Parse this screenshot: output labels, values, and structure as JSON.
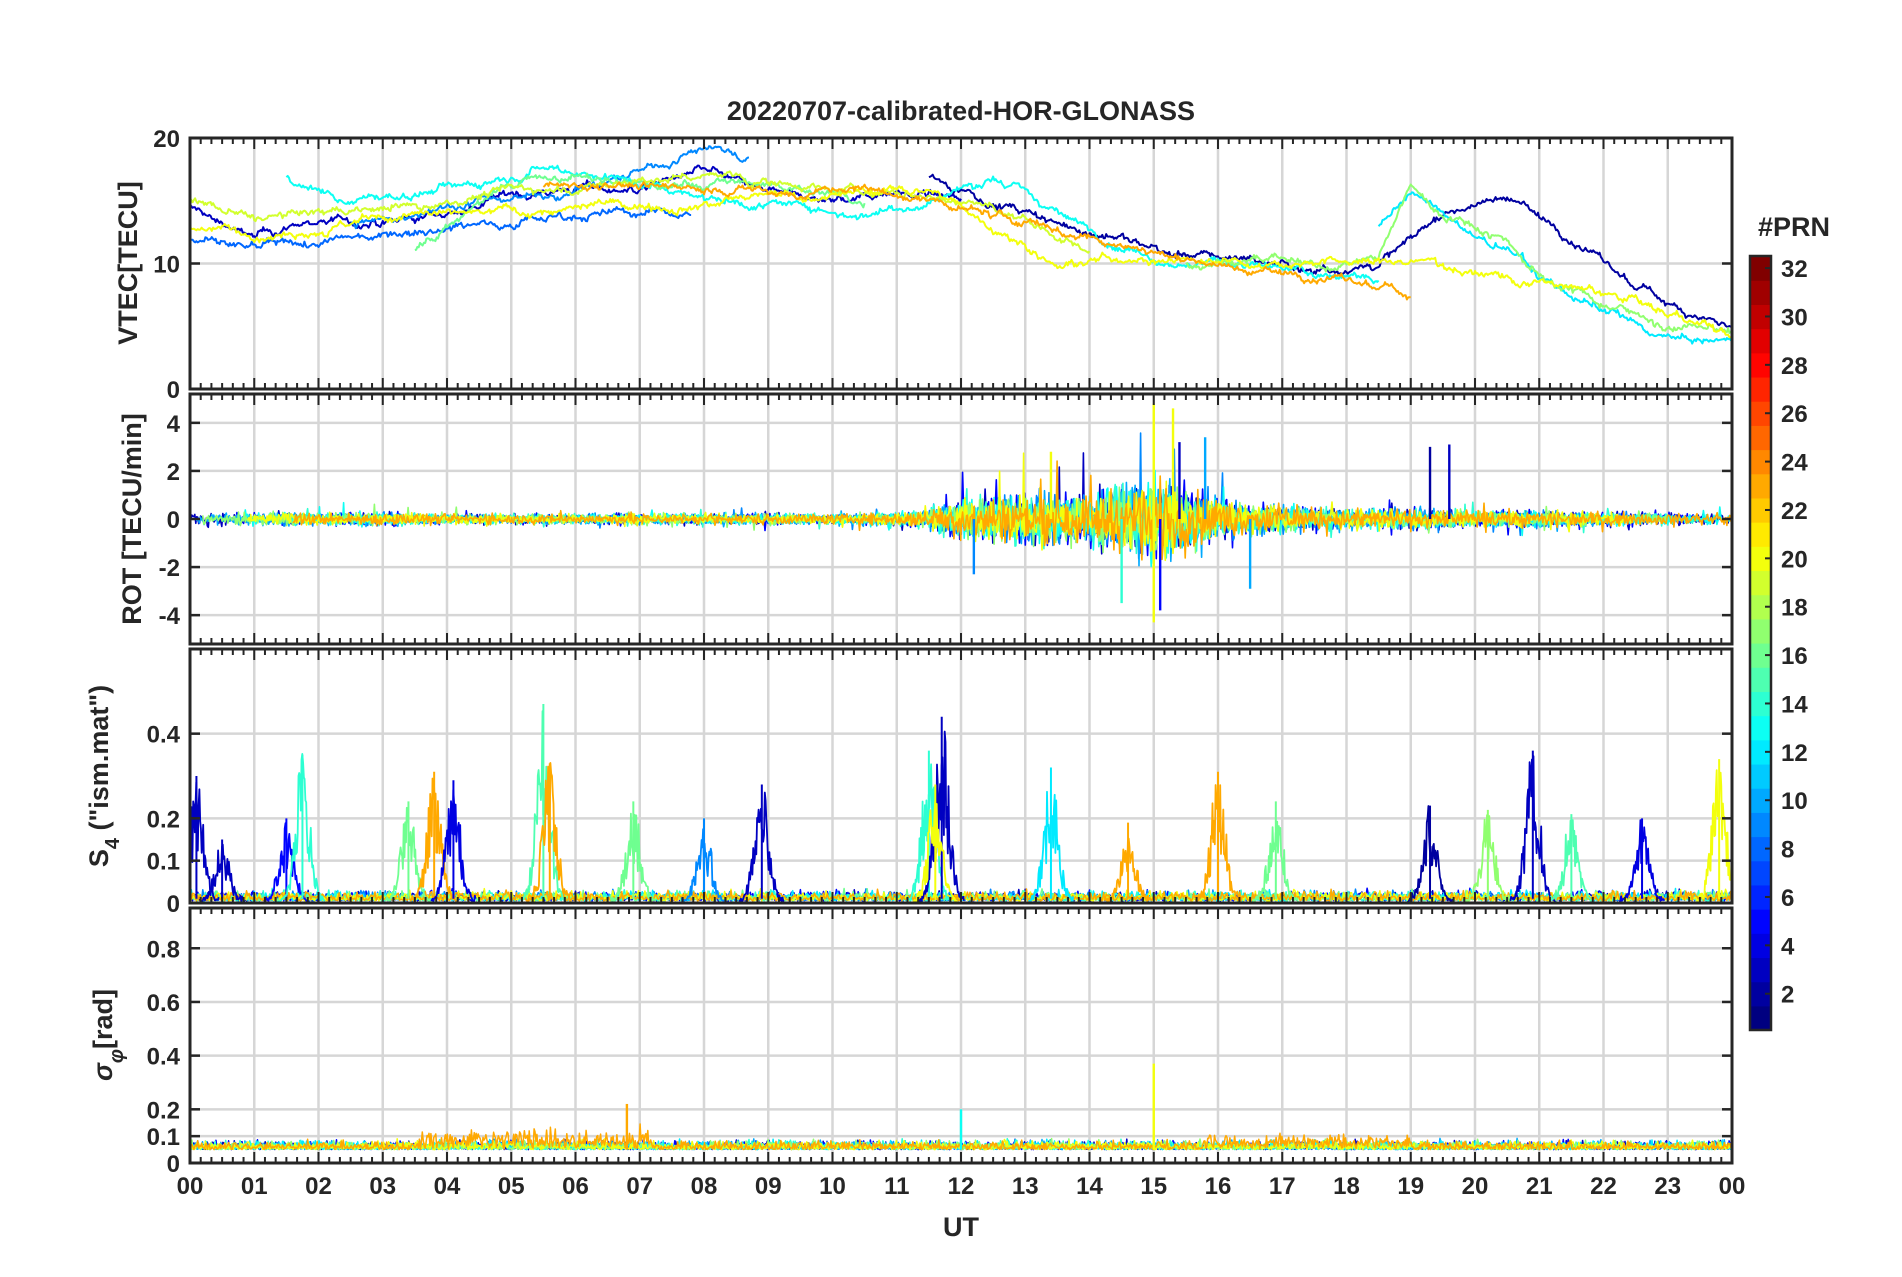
{
  "figure": {
    "title": "20220707-calibrated-HOR-GLONASS",
    "xlabel": "UT",
    "colorbar": {
      "label": "#PRN",
      "range": [
        1,
        32
      ],
      "ticks": [
        "2",
        "4",
        "6",
        "8",
        "10",
        "12",
        "14",
        "16",
        "18",
        "20",
        "22",
        "24",
        "26",
        "28",
        "30",
        "32"
      ]
    }
  },
  "chart_data": [
    {
      "type": "line",
      "panel": "vtec",
      "title": "20220707-calibrated-HOR-GLONASS",
      "ylabel": "VTEC[TECU]",
      "ylim": [
        0,
        20
      ],
      "yticks": [
        "0",
        "10",
        "20"
      ],
      "xlim": [
        0,
        24
      ],
      "grid": true,
      "series": [
        {
          "prn": 3,
          "x": [
            0,
            1,
            2,
            3,
            4,
            5,
            6,
            7,
            8,
            9,
            10,
            11,
            12
          ],
          "y": [
            14.5,
            12,
            13.5,
            13,
            14,
            15.5,
            16,
            16,
            17.5,
            15.5,
            15,
            16,
            15
          ]
        },
        {
          "prn": 2,
          "x": [
            11.5,
            12.5,
            13.5,
            14.5,
            15.5,
            16.5,
            17.5,
            18.5,
            19.5,
            20.5,
            21.5,
            22.5,
            23.5,
            24
          ],
          "y": [
            17,
            15,
            13,
            12,
            10.5,
            10.5,
            9.5,
            10,
            14,
            15.5,
            12,
            8,
            6,
            5
          ]
        },
        {
          "prn": 8,
          "x": [
            0,
            1,
            2,
            3,
            4,
            5,
            6,
            7,
            7.8
          ],
          "y": [
            12,
            11,
            11.5,
            12.5,
            13,
            13.5,
            14,
            14,
            14
          ]
        },
        {
          "prn": 9,
          "x": [
            2.5,
            3.5,
            4.5,
            5.5,
            6.5,
            7.5,
            8,
            8.7
          ],
          "y": [
            13,
            14,
            15,
            15.5,
            16.5,
            18,
            19.5,
            18.5
          ]
        },
        {
          "prn": 12,
          "x": [
            18.5,
            19,
            19.5,
            20,
            20.5,
            21,
            22,
            23,
            24
          ],
          "y": [
            13,
            15.5,
            14,
            12,
            11,
            9,
            6,
            4,
            3.5
          ]
        },
        {
          "prn": 13,
          "x": [
            1.5,
            2.5,
            3.5,
            4.5,
            5.5,
            6.5,
            7.5,
            8.5,
            9.5,
            10.5,
            11.5,
            12.5,
            13.5,
            14.5,
            15.5,
            16.5,
            17.5,
            18.5
          ],
          "y": [
            17,
            15,
            15.5,
            16.5,
            18,
            17,
            16,
            15,
            14.5,
            14,
            15,
            17,
            14,
            11.5,
            10,
            10,
            9,
            9
          ]
        },
        {
          "prn": 16,
          "x": [
            3.5,
            4.5,
            5.5,
            6.5,
            7.5,
            8.5,
            9.5,
            10.5
          ],
          "y": [
            11,
            15,
            17,
            16.5,
            16,
            16.5,
            16,
            15
          ]
        },
        {
          "prn": 17,
          "x": [
            15.5,
            16.5,
            17.5,
            18.5,
            19,
            19.5,
            20,
            20.5,
            21,
            22,
            23,
            24
          ],
          "y": [
            10,
            10.5,
            9.5,
            10.5,
            16,
            14,
            13,
            12,
            9,
            7,
            5,
            4.5
          ]
        },
        {
          "prn": 19,
          "x": [
            0,
            1,
            2,
            3,
            4,
            5,
            6,
            7,
            8,
            9,
            10,
            11,
            12,
            13,
            14
          ],
          "y": [
            15,
            13.5,
            14,
            14.5,
            15,
            16,
            16,
            16.5,
            17,
            16.5,
            16,
            15.5,
            15,
            13.5,
            11
          ]
        },
        {
          "prn": 20,
          "x": [
            0,
            1,
            2,
            3,
            11.5,
            12.5,
            13.5,
            14.5,
            19.5,
            20.5,
            21.5,
            22.5,
            23.5,
            24
          ],
          "y": [
            13,
            12.5,
            13,
            13.5,
            16,
            13,
            10,
            10.5,
            10,
            9,
            8,
            7,
            5,
            4
          ]
        },
        {
          "prn": 23,
          "x": [
            5.5,
            6.5,
            7.5,
            8.5,
            9.5,
            10.5,
            15.5,
            16.5,
            17.5,
            18.5,
            19
          ],
          "y": [
            16,
            16.5,
            16,
            16,
            15.5,
            16,
            10.5,
            9.5,
            9,
            8,
            7.5
          ]
        }
      ]
    },
    {
      "type": "line",
      "panel": "rot",
      "ylabel": "ROT [TECU/min]",
      "ylim": [
        -5.2,
        5.2
      ],
      "yticks": [
        "-4",
        "-2",
        "0",
        "2",
        "4"
      ],
      "xlim": [
        0,
        24
      ],
      "grid": true,
      "activity_profile": {
        "x": [
          0,
          1,
          2,
          3,
          4,
          5,
          6,
          7,
          8,
          9,
          10,
          11,
          11.5,
          12,
          13,
          14,
          15,
          15.5,
          16,
          17,
          18,
          19,
          20,
          21,
          22,
          23,
          24
        ],
        "amplitude": [
          0.4,
          0.4,
          0.35,
          0.4,
          0.3,
          0.3,
          0.3,
          0.35,
          0.3,
          0.35,
          0.3,
          0.4,
          0.6,
          1.2,
          1.5,
          1.5,
          2.5,
          2,
          1.2,
          0.8,
          0.6,
          0.6,
          0.5,
          0.5,
          0.4,
          0.35,
          0.3
        ]
      },
      "spikes": [
        {
          "x": 15.0,
          "y": 4.8,
          "prn": 20
        },
        {
          "x": 15.0,
          "y": -4.3,
          "prn": 20
        },
        {
          "x": 15.1,
          "y": -3.8,
          "prn": 5
        },
        {
          "x": 15.3,
          "y": 4.6,
          "prn": 20
        },
        {
          "x": 15.4,
          "y": 3.2,
          "prn": 3
        },
        {
          "x": 15.8,
          "y": 3.4,
          "prn": 10
        },
        {
          "x": 14.5,
          "y": -3.5,
          "prn": 14
        },
        {
          "x": 13.4,
          "y": 2.8,
          "prn": 20
        },
        {
          "x": 19.6,
          "y": 3.1,
          "prn": 3
        },
        {
          "x": 19.3,
          "y": 3.0,
          "prn": 2
        },
        {
          "x": 16.5,
          "y": -2.9,
          "prn": 10
        },
        {
          "x": 12.2,
          "y": -2.3,
          "prn": 9
        }
      ]
    },
    {
      "type": "line",
      "panel": "s4",
      "ylabel": "S4 (\"ism.mat\")",
      "ylim": [
        0,
        0.6
      ],
      "yticks": [
        "0",
        "0.1",
        "0.2",
        "0.4"
      ],
      "xlim": [
        0,
        24
      ],
      "grid": true,
      "bursts": [
        {
          "x": 0.1,
          "peak": 0.3,
          "prn": 3
        },
        {
          "x": 0.5,
          "peak": 0.15,
          "prn": 3
        },
        {
          "x": 1.5,
          "peak": 0.2,
          "prn": 5
        },
        {
          "x": 1.75,
          "peak": 0.35,
          "prn": 14
        },
        {
          "x": 3.4,
          "peak": 0.24,
          "prn": 16
        },
        {
          "x": 3.8,
          "peak": 0.31,
          "prn": 23
        },
        {
          "x": 4.1,
          "peak": 0.29,
          "prn": 4
        },
        {
          "x": 5.5,
          "peak": 0.47,
          "prn": 15
        },
        {
          "x": 5.6,
          "peak": 0.33,
          "prn": 23
        },
        {
          "x": 6.9,
          "peak": 0.24,
          "prn": 16
        },
        {
          "x": 8.0,
          "peak": 0.2,
          "prn": 9
        },
        {
          "x": 8.9,
          "peak": 0.28,
          "prn": 3
        },
        {
          "x": 11.5,
          "peak": 0.36,
          "prn": 14
        },
        {
          "x": 11.7,
          "peak": 0.44,
          "prn": 3
        },
        {
          "x": 11.6,
          "peak": 0.28,
          "prn": 20
        },
        {
          "x": 13.4,
          "peak": 0.32,
          "prn": 12
        },
        {
          "x": 14.6,
          "peak": 0.19,
          "prn": 23
        },
        {
          "x": 16.0,
          "peak": 0.31,
          "prn": 23
        },
        {
          "x": 16.9,
          "peak": 0.24,
          "prn": 16
        },
        {
          "x": 19.3,
          "peak": 0.23,
          "prn": 2
        },
        {
          "x": 20.2,
          "peak": 0.22,
          "prn": 17
        },
        {
          "x": 20.9,
          "peak": 0.36,
          "prn": 3
        },
        {
          "x": 21.5,
          "peak": 0.21,
          "prn": 15
        },
        {
          "x": 22.6,
          "peak": 0.2,
          "prn": 4
        },
        {
          "x": 23.8,
          "peak": 0.34,
          "prn": 20
        }
      ]
    },
    {
      "type": "line",
      "panel": "sigma_phi",
      "ylabel": "σφ[rad]",
      "ylim": [
        0,
        0.95
      ],
      "yticks": [
        "0",
        "0.1",
        "0.2",
        "0.4",
        "0.6",
        "0.8"
      ],
      "xlim": [
        0,
        24
      ],
      "xticks": [
        "00",
        "01",
        "02",
        "03",
        "04",
        "05",
        "06",
        "07",
        "08",
        "09",
        "10",
        "11",
        "12",
        "13",
        "14",
        "15",
        "16",
        "17",
        "18",
        "19",
        "20",
        "21",
        "22",
        "23",
        "00"
      ],
      "grid": true,
      "spikes": [
        {
          "x": 15.0,
          "y": 0.37,
          "prn": 20
        },
        {
          "x": 6.8,
          "y": 0.22,
          "prn": 23
        },
        {
          "x": 12.0,
          "y": 0.2,
          "prn": 13
        }
      ]
    }
  ]
}
